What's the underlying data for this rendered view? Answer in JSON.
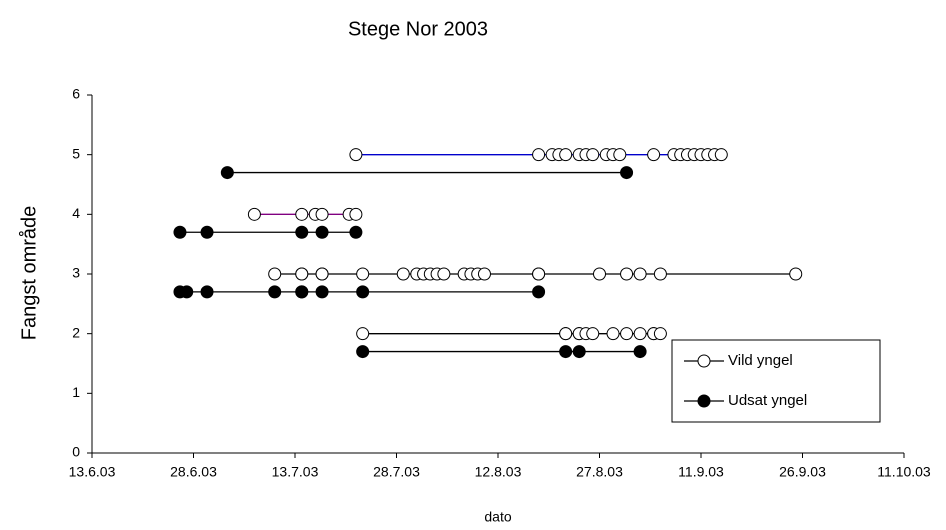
{
  "chart_data": {
    "type": "scatter",
    "title": "Stege Nor 2003",
    "x_label": "dato",
    "y_label": "Fangst område",
    "xlim": [
      "2003-06-13",
      "2003-10-11"
    ],
    "xticks": [
      {
        "value": "2003-06-13",
        "label": "13.6.03"
      },
      {
        "value": "2003-06-28",
        "label": "28.6.03"
      },
      {
        "value": "2003-07-13",
        "label": "13.7.03"
      },
      {
        "value": "2003-07-28",
        "label": "28.7.03"
      },
      {
        "value": "2003-08-12",
        "label": "12.8.03"
      },
      {
        "value": "2003-08-27",
        "label": "27.8.03"
      },
      {
        "value": "2003-09-11",
        "label": "11.9.03"
      },
      {
        "value": "2003-09-26",
        "label": "26.9.03"
      },
      {
        "value": "2003-10-11",
        "label": "11.10.03"
      }
    ],
    "ylim": [
      0,
      6
    ],
    "yticks": [
      0,
      1,
      2,
      3,
      4,
      5,
      6
    ],
    "legend": "lower right",
    "series": [
      {
        "name": "Vild yngel",
        "color": "#000000",
        "marker_fill": "#ffffff",
        "groups": [
          {
            "color": "#0000cc",
            "x": [
              "2003-07-22",
              "2003-08-18",
              "2003-08-20",
              "2003-08-21",
              "2003-08-22",
              "2003-08-24",
              "2003-08-25",
              "2003-08-26",
              "2003-08-28",
              "2003-08-29",
              "2003-08-30",
              "2003-09-04",
              "2003-09-07",
              "2003-09-08",
              "2003-09-09",
              "2003-09-10",
              "2003-09-11",
              "2003-09-12",
              "2003-09-13",
              "2003-09-14"
            ],
            "values": [
              5,
              5,
              5,
              5,
              5,
              5,
              5,
              5,
              5,
              5,
              5,
              5,
              5,
              5,
              5,
              5,
              5,
              5,
              5,
              5
            ]
          },
          {
            "color": "#800080",
            "x": [
              "2003-07-07",
              "2003-07-14",
              "2003-07-16",
              "2003-07-17",
              "2003-07-21",
              "2003-07-22"
            ],
            "values": [
              4,
              4,
              4,
              4,
              4,
              4
            ]
          },
          {
            "color": "#000000",
            "x": [
              "2003-07-10",
              "2003-07-14",
              "2003-07-14",
              "2003-07-17",
              "2003-07-17",
              "2003-07-23",
              "2003-07-29",
              "2003-07-31",
              "2003-08-01",
              "2003-08-02",
              "2003-08-03",
              "2003-08-04",
              "2003-08-07",
              "2003-08-08",
              "2003-08-09",
              "2003-08-10",
              "2003-08-18",
              "2003-08-18",
              "2003-08-27",
              "2003-08-31",
              "2003-09-02",
              "2003-09-05",
              "2003-09-25"
            ],
            "values": [
              3,
              3,
              3,
              3,
              3,
              3,
              3,
              3,
              3,
              3,
              3,
              3,
              3,
              3,
              3,
              3,
              3,
              3,
              3,
              3,
              3,
              3,
              3
            ]
          },
          {
            "color": "#000000",
            "x": [
              "2003-07-23",
              "2003-08-22",
              "2003-08-22",
              "2003-08-24",
              "2003-08-24",
              "2003-08-25",
              "2003-08-26",
              "2003-08-29",
              "2003-08-31",
              "2003-09-02",
              "2003-09-04",
              "2003-09-04",
              "2003-09-05"
            ],
            "values": [
              2,
              2,
              2,
              2,
              2,
              2,
              2,
              2,
              2,
              2,
              2,
              2,
              2
            ]
          }
        ]
      },
      {
        "name": "Udsat yngel",
        "color": "#000000",
        "marker_fill": "#000000",
        "groups": [
          {
            "color": "#000000",
            "x": [
              "2003-07-03",
              "2003-08-31"
            ],
            "values": [
              4.7,
              4.7
            ]
          },
          {
            "color": "#000000",
            "x": [
              "2003-06-26",
              "2003-06-30",
              "2003-07-14",
              "2003-07-17",
              "2003-07-22"
            ],
            "values": [
              3.7,
              3.7,
              3.7,
              3.7,
              3.7
            ]
          },
          {
            "color": "#000000",
            "x": [
              "2003-06-26",
              "2003-06-27",
              "2003-06-30",
              "2003-07-10",
              "2003-07-14",
              "2003-07-14",
              "2003-07-17",
              "2003-07-23",
              "2003-08-18"
            ],
            "values": [
              2.7,
              2.7,
              2.7,
              2.7,
              2.7,
              2.7,
              2.7,
              2.7,
              2.7
            ]
          },
          {
            "color": "#000000",
            "x": [
              "2003-07-23",
              "2003-08-22",
              "2003-08-24",
              "2003-09-02"
            ],
            "values": [
              1.7,
              1.7,
              1.7,
              1.7
            ]
          }
        ]
      }
    ]
  }
}
